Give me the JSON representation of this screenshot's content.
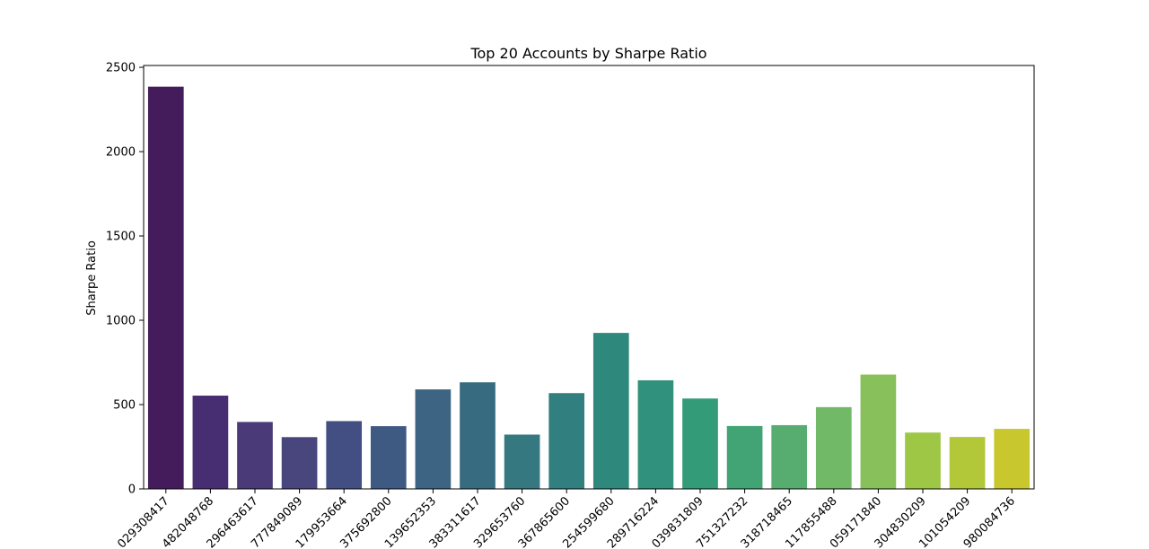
{
  "chart_data": {
    "type": "bar",
    "title": "Top 20 Accounts by Sharpe Ratio",
    "xlabel": "",
    "ylabel": "Sharpe Ratio",
    "ylim": [
      0,
      2500
    ],
    "yticks": [
      0,
      500,
      1000,
      1500,
      2000,
      2500
    ],
    "categories": [
      "029308417",
      "482048768",
      "296463617",
      "777849089",
      "179953664",
      "375692800",
      "139652353",
      "383311617",
      "329653760",
      "367865600",
      "254599680",
      "289716224",
      "039831809",
      "751327232",
      "318718465",
      "117855488",
      "059171840",
      "304830209",
      "101054209",
      "980084736"
    ],
    "values": [
      2385,
      553,
      397,
      307,
      402,
      372,
      590,
      632,
      322,
      568,
      925,
      644,
      536,
      373,
      378,
      485,
      678,
      334,
      308,
      356
    ],
    "colors": [
      "#451c5b",
      "#472d71",
      "#4a3a77",
      "#48467d",
      "#434f82",
      "#3e5a82",
      "#3d6482",
      "#376c80",
      "#357880",
      "#317f7e",
      "#2e897c",
      "#30927c",
      "#349b78",
      "#42a474",
      "#57ad6f",
      "#71b967",
      "#88c15b",
      "#9ec745",
      "#b2c839",
      "#c8c82e"
    ],
    "grid": false,
    "legend": "none"
  }
}
